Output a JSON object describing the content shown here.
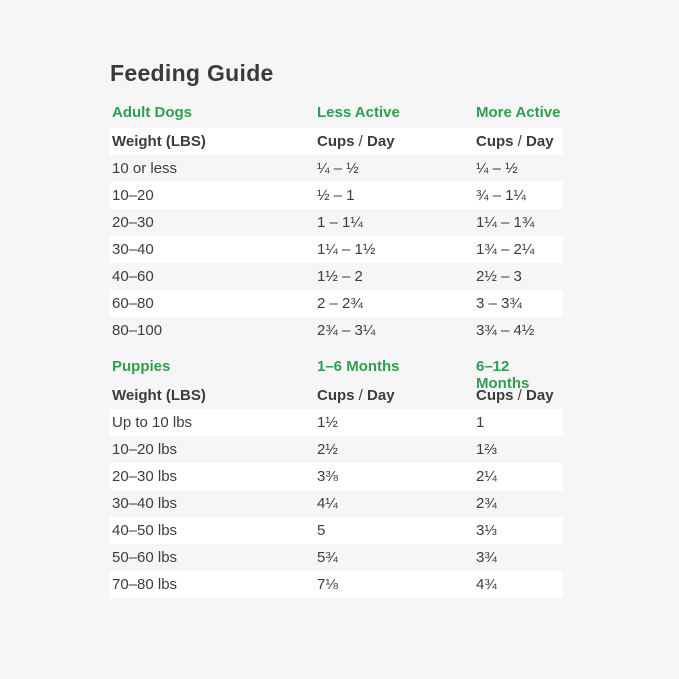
{
  "page": {
    "title": "Feeding Guide"
  },
  "theme": {
    "bg": "#f6f6f6",
    "row-white": "#ffffff",
    "green": "#2e9e4f",
    "text": "#3c3c3c",
    "title-color": "#3a3a3a"
  },
  "labels": {
    "cups": "Cups",
    "slash": " / ",
    "day": "Day"
  },
  "chart_data": [
    {
      "type": "table",
      "title": "Adult Dogs",
      "group_headers": [
        "Adult Dogs",
        "Less Active",
        "More Active"
      ],
      "column_headers": [
        "Weight (LBS)",
        "Cups / Day",
        "Cups / Day"
      ],
      "rows": [
        [
          "10 or less",
          "¼ – ½",
          "¼ – ½"
        ],
        [
          "10–20",
          "½ – 1",
          "¾ – 1¼"
        ],
        [
          "20–30",
          "1 – 1¼",
          "1¼ – 1¾"
        ],
        [
          "30–40",
          "1¼ – 1½",
          "1¾ – 2¼"
        ],
        [
          "40–60",
          "1½ – 2",
          "2½ – 3"
        ],
        [
          "60–80",
          "2 – 2¾",
          "3 – 3¾"
        ],
        [
          "80–100",
          "2¾ – 3¼",
          "3¾ – 4½"
        ]
      ]
    },
    {
      "type": "table",
      "title": "Puppies",
      "group_headers": [
        "Puppies",
        "1–6 Months",
        "6–12 Months"
      ],
      "column_headers": [
        "Weight (LBS)",
        "Cups / Day",
        "Cups / Day"
      ],
      "rows": [
        [
          "Up to 10 lbs",
          "1½",
          "1"
        ],
        [
          "10–20 lbs",
          "2½",
          "1⅔"
        ],
        [
          "20–30 lbs",
          "3⅜",
          "2¼"
        ],
        [
          "30–40 lbs",
          "4¼",
          "2¾"
        ],
        [
          "40–50 lbs",
          "5",
          "3⅓"
        ],
        [
          "50–60 lbs",
          "5¾",
          "3¾"
        ],
        [
          "70–80 lbs",
          "7⅛",
          "4¾"
        ]
      ]
    }
  ]
}
